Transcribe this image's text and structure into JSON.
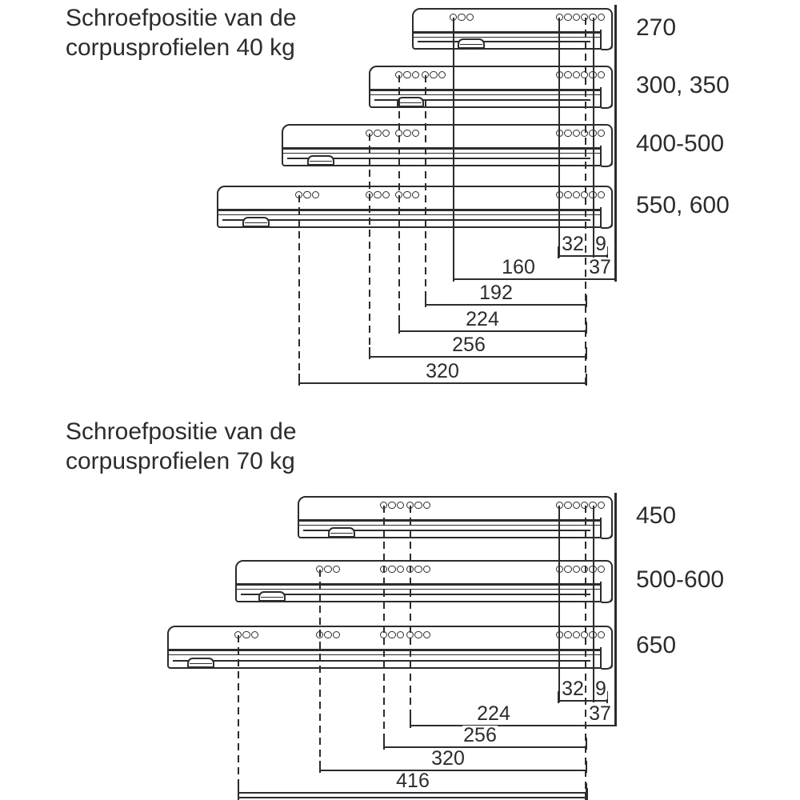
{
  "colors": {
    "ink": "#2e2c2a",
    "background": "#ffffff"
  },
  "sections": [
    {
      "title_line1": "Schroefpositie van de",
      "title_line2": "corpusprofielen 40 kg",
      "rail_labels": [
        "270",
        "300, 350",
        "400-500",
        "550, 600"
      ],
      "dim_labels": {
        "d32": "32",
        "d9": "9",
        "d37": "37",
        "rows": [
          "160",
          "192",
          "224",
          "256",
          "320"
        ]
      }
    },
    {
      "title_line1": "Schroefpositie van de",
      "title_line2": "corpusprofielen 70 kg",
      "rail_labels": [
        "450",
        "500-600",
        "650"
      ],
      "dim_labels": {
        "d32": "32",
        "d9": "9",
        "d37": "37",
        "rows": [
          "224",
          "256",
          "320",
          "416"
        ]
      }
    }
  ]
}
